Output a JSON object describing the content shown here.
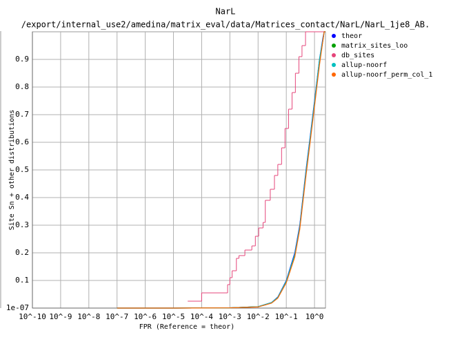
{
  "chart_data": {
    "type": "line",
    "title": "NarL",
    "subtitle": "/export/internal_use2/amedina/matrix_eval/data/Matrices_contact/NarL/NarL_1je8_AB.",
    "x_label": "FPR (Reference = theor)",
    "y_label": "Site Sn + other distributions",
    "x_scale": "log",
    "grid": true,
    "legend": "top-right",
    "xlim": [
      1e-10,
      2.45
    ],
    "ylim": [
      1e-07,
      1
    ],
    "xticks": [
      {
        "value": 1e-10,
        "label": "10^-10"
      },
      {
        "value": 1e-09,
        "label": "10^-9"
      },
      {
        "value": 1e-08,
        "label": "10^-8"
      },
      {
        "value": 1e-07,
        "label": "10^-7"
      },
      {
        "value": 1e-06,
        "label": "10^-6"
      },
      {
        "value": 1e-05,
        "label": "10^-5"
      },
      {
        "value": 0.0001,
        "label": "10^-4"
      },
      {
        "value": 0.001,
        "label": "10^-3"
      },
      {
        "value": 0.01,
        "label": "10^-2"
      },
      {
        "value": 0.1,
        "label": "10^-1"
      },
      {
        "value": 1,
        "label": "10^0"
      }
    ],
    "yticks": [
      {
        "value": 1e-07,
        "label": "1e-07"
      },
      0.1,
      0.2,
      0.3,
      0.4,
      0.5,
      0.6,
      0.7,
      0.8,
      0.9
    ],
    "series": [
      {
        "name": "theor",
        "color": "#0000ff",
        "x": [
          1e-07,
          1e-05,
          0.001,
          0.01,
          0.03,
          0.05,
          0.1,
          0.2,
          0.3,
          0.5,
          0.7,
          1,
          1.5,
          2,
          2.2,
          2.45
        ],
        "values": [
          0,
          0,
          0.001,
          0.005,
          0.02,
          0.04,
          0.1,
          0.2,
          0.3,
          0.5,
          0.62,
          0.75,
          0.9,
          0.98,
          1,
          1
        ]
      },
      {
        "name": "matrix_sites_loo",
        "color": "#00a000",
        "x": [
          1e-07,
          1e-05,
          0.001,
          0.01,
          0.03,
          0.05,
          0.1,
          0.2,
          0.3,
          0.5,
          0.7,
          1,
          1.5,
          2,
          2.2,
          2.45
        ],
        "values": [
          0,
          0,
          0.001,
          0.005,
          0.019,
          0.038,
          0.095,
          0.19,
          0.29,
          0.49,
          0.61,
          0.74,
          0.89,
          0.97,
          1,
          1
        ]
      },
      {
        "name": "db_sites",
        "color": "#e5457a",
        "step": true,
        "x": [
          3.2e-05,
          0.0001,
          0.00083,
          0.001,
          0.0012,
          0.0017,
          0.0021,
          0.0034,
          0.006,
          0.008,
          0.0105,
          0.015,
          0.018,
          0.027,
          0.038,
          0.05,
          0.068,
          0.09,
          0.12,
          0.16,
          0.21,
          0.28,
          0.36,
          0.48,
          2.45
        ],
        "values": [
          0.025,
          0.055,
          0.085,
          0.11,
          0.135,
          0.18,
          0.19,
          0.21,
          0.225,
          0.26,
          0.29,
          0.31,
          0.39,
          0.43,
          0.48,
          0.52,
          0.58,
          0.65,
          0.72,
          0.78,
          0.85,
          0.91,
          0.95,
          1,
          1
        ]
      },
      {
        "name": "allup-noorf",
        "color": "#00bfbf",
        "x": [
          1e-07,
          1e-05,
          0.001,
          0.01,
          0.03,
          0.05,
          0.1,
          0.2,
          0.3,
          0.5,
          0.7,
          1,
          1.5,
          2,
          2.2,
          2.45
        ],
        "values": [
          0,
          0,
          0.001,
          0.005,
          0.02,
          0.039,
          0.098,
          0.195,
          0.295,
          0.495,
          0.615,
          0.745,
          0.9,
          0.975,
          1,
          1
        ]
      },
      {
        "name": "allup-noorf_perm_col_1",
        "color": "#ff6600",
        "x": [
          1e-07,
          1e-05,
          0.001,
          0.01,
          0.03,
          0.05,
          0.1,
          0.2,
          0.3,
          0.5,
          0.7,
          1,
          1.5,
          2,
          2.2,
          2.45
        ],
        "values": [
          0,
          0,
          0.001,
          0.004,
          0.018,
          0.036,
          0.092,
          0.185,
          0.285,
          0.48,
          0.6,
          0.73,
          0.88,
          0.97,
          1,
          1
        ]
      }
    ]
  }
}
